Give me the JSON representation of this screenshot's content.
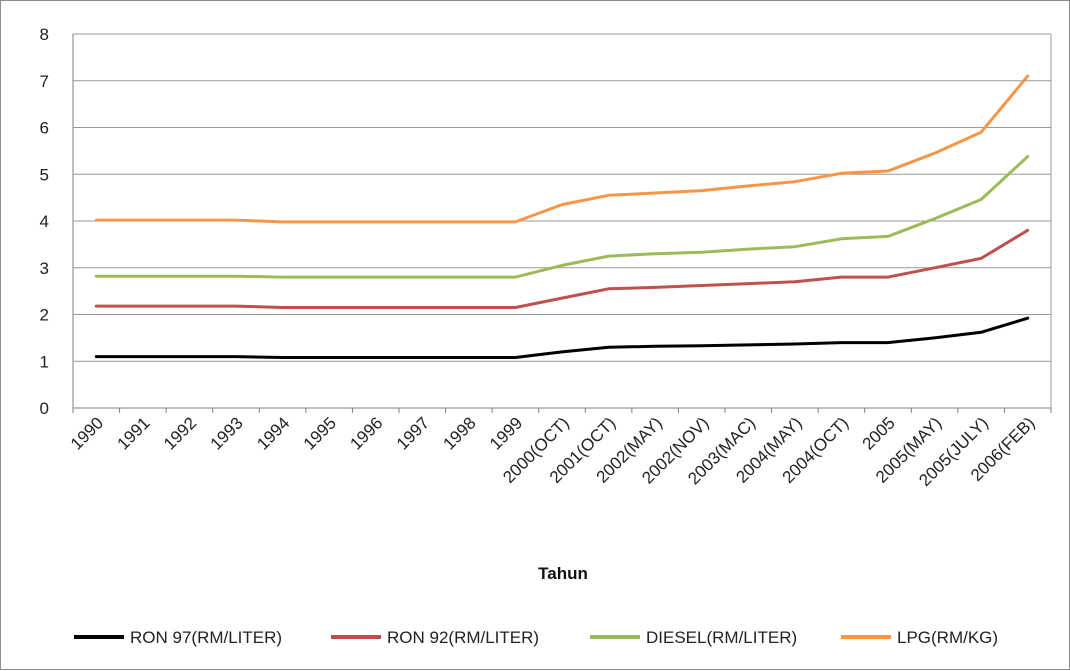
{
  "chart_data": {
    "type": "line",
    "xlabel": "Tahun",
    "ylabel": "",
    "ylim": [
      0,
      8
    ],
    "yticks": [
      "0",
      "1",
      "2",
      "3",
      "4",
      "5",
      "6",
      "7",
      "8"
    ],
    "grid": true,
    "legend_position": "bottom",
    "categories": [
      "1990",
      "1991",
      "1992",
      "1993",
      "1994",
      "1995",
      "1996",
      "1997",
      "1998",
      "1999",
      "2000(OCT)",
      "2001(OCT)",
      "2002(MAY)",
      "2002(NOV)",
      "2003(MAC)",
      "2004(MAY)",
      "2004(OCT)",
      "2005",
      "2005(MAY)",
      "2005(JULY)",
      "2006(FEB)"
    ],
    "series": [
      {
        "name": "RON 97(RM/LITER)",
        "color": "#000000",
        "values": [
          1.1,
          1.1,
          1.1,
          1.1,
          1.08,
          1.08,
          1.08,
          1.08,
          1.08,
          1.08,
          1.2,
          1.3,
          1.32,
          1.33,
          1.35,
          1.37,
          1.4,
          1.4,
          1.5,
          1.62,
          1.92
        ]
      },
      {
        "name": "RON 92(RM/LITER)",
        "color": "#c0504d",
        "values": [
          2.18,
          2.18,
          2.18,
          2.18,
          2.15,
          2.15,
          2.15,
          2.15,
          2.15,
          2.15,
          2.35,
          2.55,
          2.58,
          2.62,
          2.66,
          2.7,
          2.8,
          2.8,
          3.0,
          3.2,
          3.8
        ]
      },
      {
        "name": "DIESEL(RM/LITER)",
        "color": "#9bbb59",
        "values": [
          2.82,
          2.82,
          2.82,
          2.82,
          2.8,
          2.8,
          2.8,
          2.8,
          2.8,
          2.8,
          3.05,
          3.25,
          3.3,
          3.33,
          3.4,
          3.45,
          3.62,
          3.67,
          4.05,
          4.46,
          5.38
        ]
      },
      {
        "name": "LPG(RM/KG)",
        "color": "#f79646",
        "values": [
          4.02,
          4.02,
          4.02,
          4.02,
          3.98,
          3.98,
          3.98,
          3.98,
          3.98,
          3.98,
          4.35,
          4.55,
          4.6,
          4.65,
          4.75,
          4.84,
          5.02,
          5.07,
          5.45,
          5.9,
          7.1
        ]
      }
    ]
  }
}
